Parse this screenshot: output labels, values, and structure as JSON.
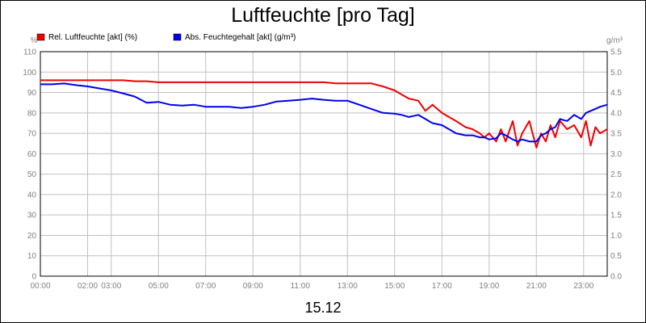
{
  "chart_data": {
    "type": "line",
    "title": "Luftfeuchte [pro Tag]",
    "date_label": "15.12",
    "y_left": {
      "unit": "%",
      "min": 0,
      "max": 110,
      "step": 10,
      "ticks": [
        "0",
        "10",
        "20",
        "30",
        "40",
        "50",
        "60",
        "70",
        "80",
        "90",
        "100",
        "110"
      ]
    },
    "y_right": {
      "unit": "g/m³",
      "min": 0,
      "max": 5.5,
      "step": 0.5,
      "ticks": [
        "0.0",
        "0.5",
        "1.0",
        "1.5",
        "2.0",
        "2.5",
        "3.0",
        "3.5",
        "4.0",
        "4.5",
        "5.0",
        "5.5"
      ]
    },
    "x_hours_range": [
      0,
      24
    ],
    "x_ticks": [
      {
        "h": 0,
        "label": "00:00"
      },
      {
        "h": 2,
        "label": "02:00"
      },
      {
        "h": 3,
        "label": "03:00"
      },
      {
        "h": 5,
        "label": "05:00"
      },
      {
        "h": 7,
        "label": "07:00"
      },
      {
        "h": 9,
        "label": "09:00"
      },
      {
        "h": 11,
        "label": "11:00"
      },
      {
        "h": 13,
        "label": "13:00"
      },
      {
        "h": 15,
        "label": "15:00"
      },
      {
        "h": 17,
        "label": "17:00"
      },
      {
        "h": 19,
        "label": "19:00"
      },
      {
        "h": 21,
        "label": "21:00"
      },
      {
        "h": 23,
        "label": "23:00"
      }
    ],
    "grid": true,
    "legend_position": "top-left",
    "series": [
      {
        "name": "Rel. Luftfeuchte [akt] (%)",
        "axis": "left",
        "color": "#ee0000",
        "x": [
          0,
          0.5,
          1,
          1.5,
          2,
          2.5,
          3,
          3.5,
          4,
          4.5,
          5,
          5.5,
          6,
          6.5,
          7,
          7.5,
          8,
          8.5,
          9,
          9.5,
          10,
          10.5,
          11,
          11.5,
          12,
          12.5,
          13,
          13.5,
          14,
          14.5,
          15,
          15.3,
          15.6,
          16,
          16.3,
          16.6,
          17,
          17.3,
          17.6,
          18,
          18.3,
          18.6,
          18.8,
          19,
          19.3,
          19.5,
          19.7,
          20,
          20.2,
          20.4,
          20.7,
          21,
          21.2,
          21.4,
          21.6,
          21.8,
          22,
          22.3,
          22.6,
          22.9,
          23.1,
          23.3,
          23.5,
          23.7,
          24
        ],
        "y": [
          96,
          96,
          96,
          96,
          96,
          96,
          96,
          96,
          95.5,
          95.5,
          95,
          95,
          95,
          95,
          95,
          95,
          95,
          95,
          95,
          95,
          95,
          95,
          95,
          95,
          95,
          94.5,
          94.5,
          94.5,
          94.5,
          93,
          91,
          89,
          87,
          86,
          81,
          84,
          80,
          78,
          76,
          73,
          72,
          70,
          68,
          70,
          66,
          72,
          66,
          76,
          64,
          70,
          76,
          63,
          70,
          66,
          74,
          68,
          76,
          72,
          74,
          68,
          76,
          64,
          73,
          70,
          72
        ]
      },
      {
        "name": "Abs. Feuchtegehalt [akt] (g/m³)",
        "axis": "right",
        "color": "#0000ee",
        "x": [
          0,
          0.5,
          1,
          1.5,
          2,
          2.5,
          3,
          3.5,
          4,
          4.5,
          5,
          5.5,
          6,
          6.5,
          7,
          7.5,
          8,
          8.5,
          9,
          9.5,
          10,
          10.5,
          11,
          11.5,
          12,
          12.5,
          13,
          13.5,
          14,
          14.5,
          15,
          15.3,
          15.6,
          16,
          16.3,
          16.6,
          17,
          17.3,
          17.6,
          18,
          18.3,
          18.6,
          18.8,
          19,
          19.3,
          19.5,
          19.7,
          20,
          20.2,
          20.4,
          20.7,
          21,
          21.2,
          21.4,
          21.6,
          21.8,
          22,
          22.3,
          22.6,
          22.9,
          23.1,
          23.3,
          23.5,
          23.7,
          24
        ],
        "y": [
          4.7,
          4.7,
          4.72,
          4.68,
          4.65,
          4.6,
          4.55,
          4.48,
          4.4,
          4.25,
          4.27,
          4.2,
          4.18,
          4.2,
          4.15,
          4.15,
          4.15,
          4.12,
          4.15,
          4.2,
          4.28,
          4.3,
          4.32,
          4.35,
          4.32,
          4.3,
          4.3,
          4.2,
          4.1,
          4.0,
          3.98,
          3.95,
          3.9,
          3.95,
          3.85,
          3.75,
          3.7,
          3.6,
          3.5,
          3.45,
          3.45,
          3.4,
          3.4,
          3.35,
          3.38,
          3.5,
          3.45,
          3.35,
          3.3,
          3.35,
          3.3,
          3.3,
          3.45,
          3.5,
          3.6,
          3.65,
          3.85,
          3.8,
          3.95,
          3.85,
          4.0,
          4.05,
          4.1,
          4.15,
          4.2
        ]
      }
    ]
  }
}
